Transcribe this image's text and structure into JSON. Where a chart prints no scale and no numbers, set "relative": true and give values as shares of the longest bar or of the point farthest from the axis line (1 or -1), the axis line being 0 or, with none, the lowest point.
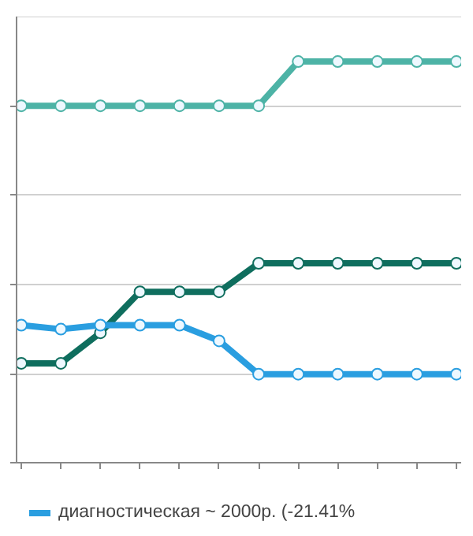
{
  "chart_data": {
    "type": "line",
    "relative": true,
    "categories": [
      null,
      null,
      null,
      null,
      null,
      null,
      null,
      null,
      null,
      null,
      null,
      null
    ],
    "series": [
      {
        "color": "#4db3a6",
        "values": [
          0.89,
          0.89,
          0.89,
          0.89,
          0.89,
          0.89,
          0.89,
          1,
          1,
          1,
          1,
          1
        ]
      },
      {
        "color": "#0f6e5e",
        "values": [
          0.249,
          0.249,
          0.325,
          0.427,
          0.427,
          0.427,
          0.498,
          0.498,
          0.498,
          0.498,
          0.498,
          0.498
        ]
      },
      {
        "name": "диагностическая ~ 2000р. (-21.41%",
        "color": "#2a9ee0",
        "values": [
          0.344,
          0.334,
          0.344,
          0.344,
          0.344,
          0.305,
          0.222,
          0.222,
          0.222,
          0.222,
          0.222,
          0.222
        ]
      }
    ],
    "grid": "y",
    "legend": "bottom",
    "marker": "circle",
    "line_style": "solid"
  }
}
